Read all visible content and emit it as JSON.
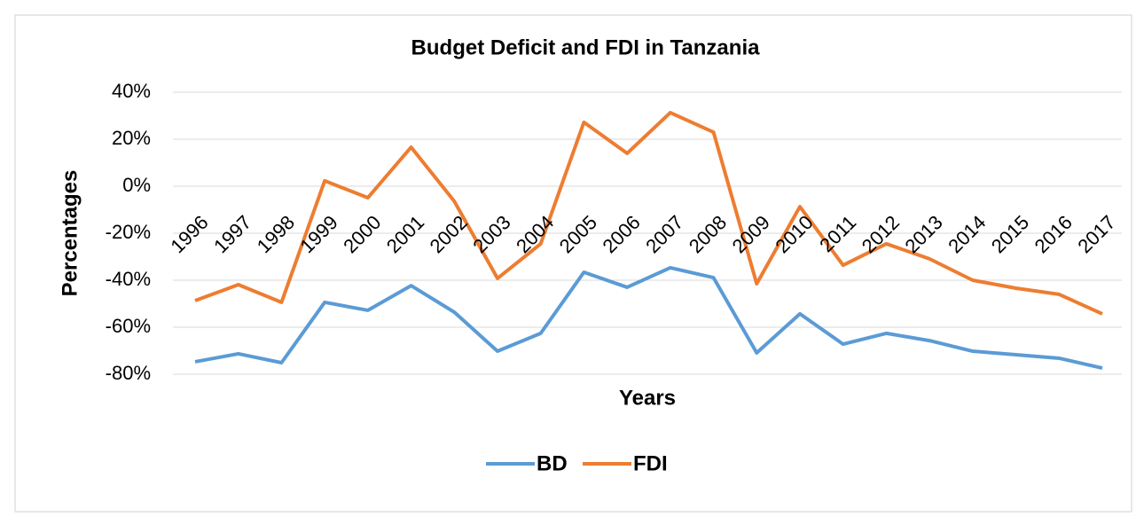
{
  "chart_data": {
    "type": "line",
    "title": "Budget Deficit and FDI in Tanzania",
    "x_label": "Years",
    "y_label": "Percentages",
    "categories": [
      "1996",
      "1997",
      "1998",
      "1999",
      "2000",
      "2001",
      "2002",
      "2003",
      "2004",
      "2005",
      "2006",
      "2007",
      "2008",
      "2009",
      "2010",
      "2011",
      "2012",
      "2013",
      "2014",
      "2015",
      "2016",
      "2017"
    ],
    "series": [
      {
        "name": "BD",
        "color": "#5b9bd5",
        "values": [
          -74.7,
          -71.3,
          -75.1,
          -49.4,
          -52.8,
          -42.3,
          -53.6,
          -70.2,
          -62.6,
          -36.6,
          -43.0,
          -34.7,
          -38.9,
          -70.9,
          -54.3,
          -67.2,
          -62.6,
          -65.7,
          -70.2,
          -71.7,
          -73.2,
          -77.4
        ]
      },
      {
        "name": "FDI",
        "color": "#ed7d31",
        "values": [
          -48.7,
          -41.9,
          -49.4,
          2.3,
          -4.9,
          16.6,
          -6.4,
          -39.2,
          -24.5,
          27.2,
          14.0,
          31.3,
          23.0,
          -41.5,
          -8.7,
          -33.6,
          -24.5,
          -30.9,
          -40.0,
          -43.4,
          -46.0,
          -54.3
        ]
      }
    ],
    "ylim": [
      -80,
      40
    ],
    "yticks": [
      {
        "value": -80,
        "label": "-80%"
      },
      {
        "value": -60,
        "label": "-60%"
      },
      {
        "value": -40,
        "label": "-40%"
      },
      {
        "value": -20,
        "label": "-20%"
      },
      {
        "value": 0,
        "label": "0%"
      },
      {
        "value": 20,
        "label": "20%"
      },
      {
        "value": 40,
        "label": "40%"
      }
    ],
    "grid": true,
    "legend": "bottom"
  }
}
